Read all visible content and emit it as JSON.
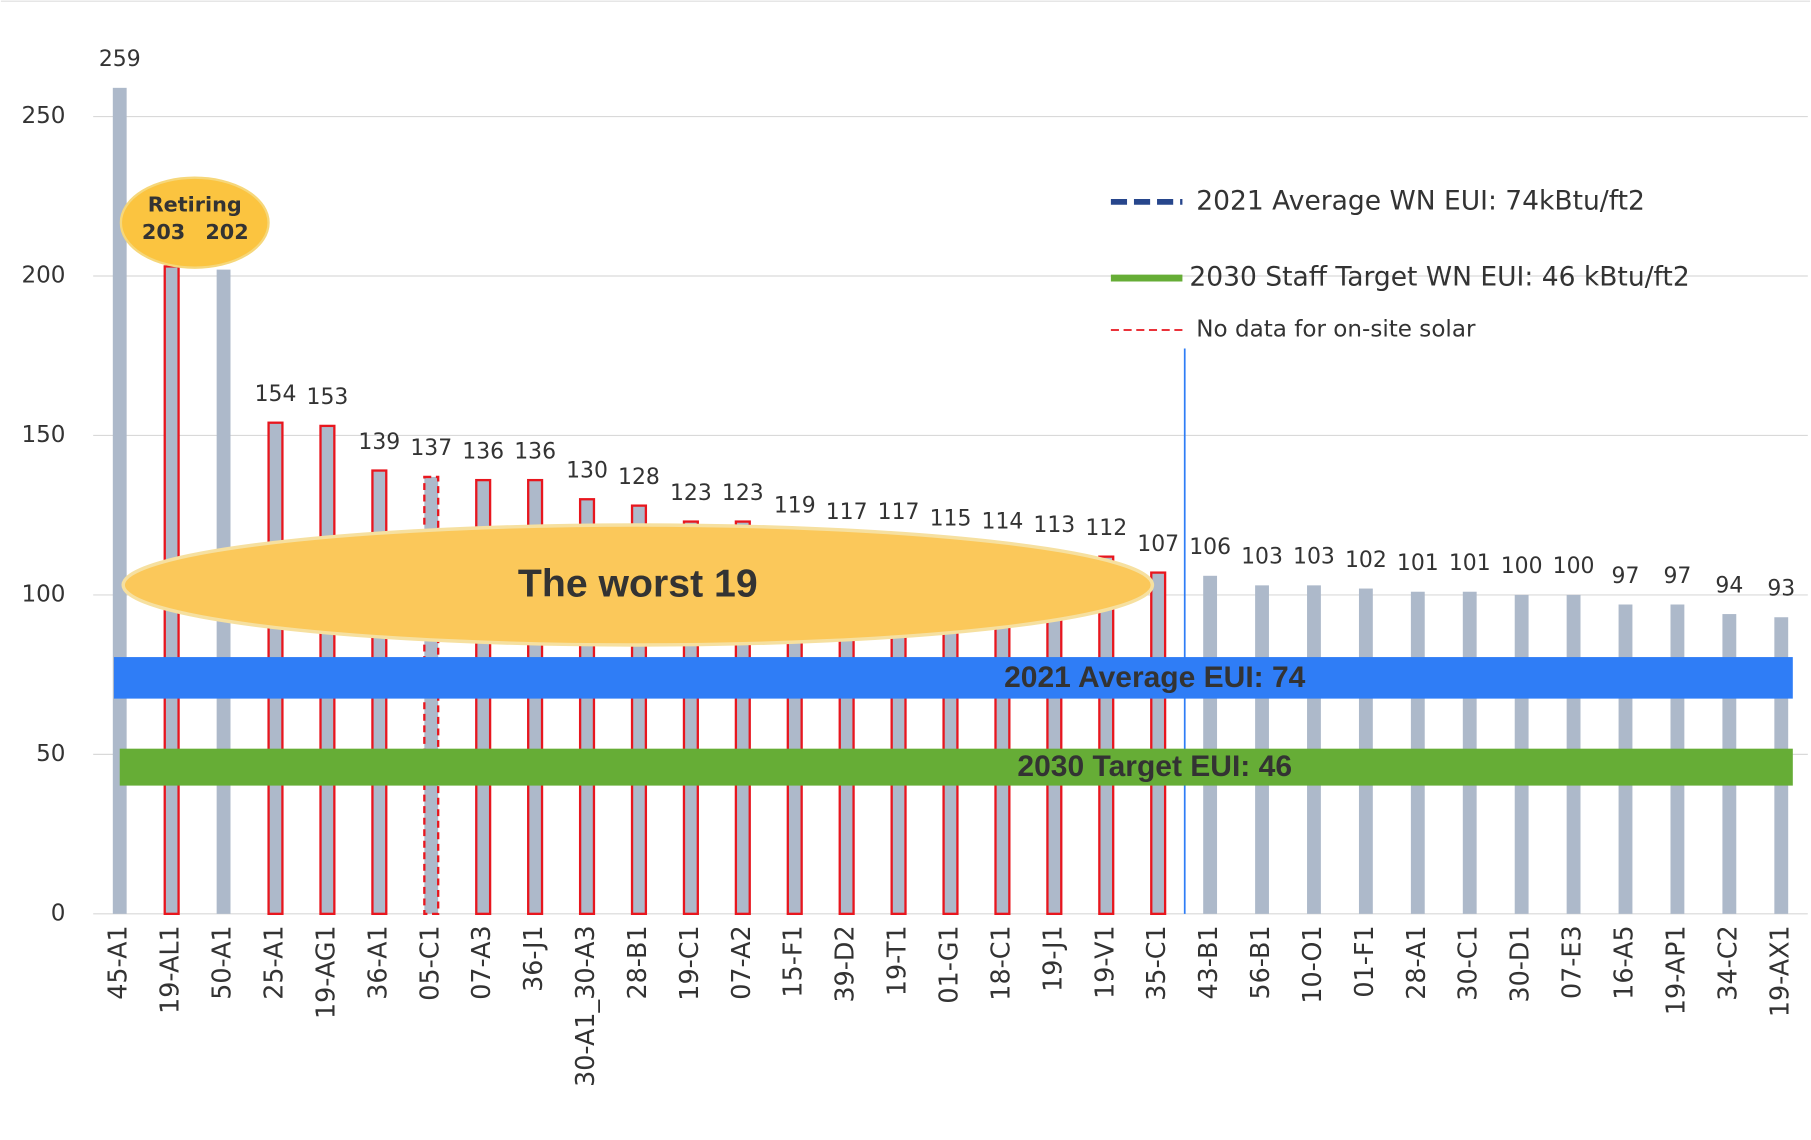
{
  "chart_data": {
    "type": "bar",
    "categories": [
      "45-A1",
      "19-AL1",
      "50-A1",
      "25-A1",
      "19-AG1",
      "36-A1",
      "05-C1",
      "07-A3",
      "36-J1",
      "30-A1_30-A3",
      "28-B1",
      "19-C1",
      "07-A2",
      "15-F1",
      "39-D2",
      "19-T1",
      "01-G1",
      "18-C1",
      "19-J1",
      "19-V1",
      "35-C1",
      "43-B1",
      "56-B1",
      "10-O1",
      "01-F1",
      "28-A1",
      "30-C1",
      "30-D1",
      "07-E3",
      "16-A5",
      "19-AP1",
      "34-C2",
      "19-AX1"
    ],
    "values": [
      259,
      203,
      202,
      154,
      153,
      139,
      137,
      136,
      136,
      130,
      128,
      123,
      123,
      119,
      117,
      117,
      115,
      114,
      113,
      112,
      107,
      106,
      103,
      103,
      102,
      101,
      101,
      100,
      100,
      97,
      97,
      94,
      93
    ],
    "outline": [
      "none",
      "solid",
      "none",
      "solid",
      "solid",
      "solid",
      "dashed",
      "solid",
      "solid",
      "solid",
      "solid",
      "solid",
      "solid",
      "solid",
      "solid",
      "solid",
      "solid",
      "solid",
      "solid",
      "solid",
      "solid",
      "none",
      "none",
      "none",
      "none",
      "none",
      "none",
      "none",
      "none",
      "none",
      "none",
      "none",
      "none"
    ],
    "color": "#adb9ca",
    "outline_color": "#e8161e",
    "ylim": [
      0,
      270
    ],
    "yticks": [
      0,
      50,
      100,
      150,
      200,
      250
    ],
    "grid": true,
    "reference_lines": [
      {
        "name": "2021 Average WN EUI: 74kBtu/ft2",
        "value": 74,
        "color": "#2f7df6",
        "legend_color": "#27468c",
        "label": "2021 Average EUI:  74"
      },
      {
        "name": "2030 Staff Target WN EUI: 46 kBtu/ft2",
        "value": 46,
        "color": "#66ad36",
        "legend_color": "#66ad36",
        "label": "2030 Target EUI:  46"
      }
    ],
    "outline_legend": "No data for on-site solar",
    "annotations": [
      "Retiring",
      "The worst 19"
    ]
  }
}
